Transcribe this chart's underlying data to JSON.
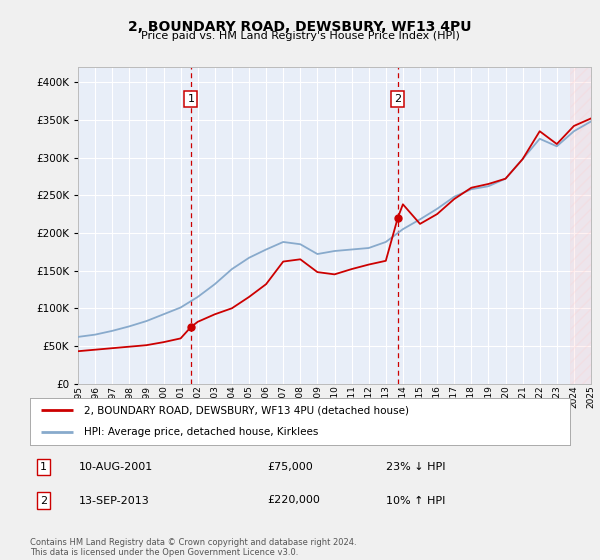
{
  "title": "2, BOUNDARY ROAD, DEWSBURY, WF13 4PU",
  "subtitle": "Price paid vs. HM Land Registry's House Price Index (HPI)",
  "bg_color": "#f0f0f0",
  "plot_bg": "#e8eef8",
  "red_color": "#cc0000",
  "blue_color": "#88aacc",
  "marker1_year": 2001.6,
  "marker2_year": 2013.7,
  "marker1_price": 75000,
  "marker2_price": 220000,
  "legend_entry1": "2, BOUNDARY ROAD, DEWSBURY, WF13 4PU (detached house)",
  "legend_entry2": "HPI: Average price, detached house, Kirklees",
  "sale1_text": "10-AUG-2001",
  "sale1_price_text": "£75,000",
  "sale1_hpi": "23% ↓ HPI",
  "sale2_text": "13-SEP-2013",
  "sale2_price_text": "£220,000",
  "sale2_hpi": "10% ↑ HPI",
  "footer": "Contains HM Land Registry data © Crown copyright and database right 2024.\nThis data is licensed under the Open Government Licence v3.0.",
  "ylim": [
    0,
    420000
  ],
  "yticks": [
    0,
    50000,
    100000,
    150000,
    200000,
    250000,
    300000,
    350000,
    400000
  ],
  "year_start": 1995,
  "year_end": 2025,
  "hpi_years": [
    1995,
    1996,
    1997,
    1998,
    1999,
    2000,
    2001,
    2002,
    2003,
    2004,
    2005,
    2006,
    2007,
    2008,
    2009,
    2010,
    2011,
    2012,
    2013,
    2014,
    2015,
    2016,
    2017,
    2018,
    2019,
    2020,
    2021,
    2022,
    2023,
    2024,
    2025
  ],
  "hpi_values": [
    62000,
    65000,
    70000,
    76000,
    83000,
    92000,
    101000,
    115000,
    132000,
    152000,
    167000,
    178000,
    188000,
    185000,
    172000,
    176000,
    178000,
    180000,
    188000,
    205000,
    218000,
    232000,
    248000,
    258000,
    262000,
    272000,
    298000,
    325000,
    315000,
    335000,
    348000
  ],
  "red_years": [
    1995,
    1996,
    1997,
    1998,
    1999,
    2000,
    2001,
    2001.6,
    2002,
    2003,
    2004,
    2005,
    2006,
    2007,
    2008,
    2009,
    2010,
    2011,
    2012,
    2013,
    2013.7,
    2014,
    2015,
    2016,
    2017,
    2018,
    2019,
    2020,
    2021,
    2022,
    2023,
    2024,
    2025
  ],
  "red_values": [
    43000,
    45000,
    47000,
    49000,
    51000,
    55000,
    60000,
    75000,
    82000,
    92000,
    100000,
    115000,
    132000,
    162000,
    165000,
    148000,
    145000,
    152000,
    158000,
    163000,
    220000,
    238000,
    212000,
    225000,
    245000,
    260000,
    265000,
    272000,
    298000,
    335000,
    318000,
    342000,
    352000
  ]
}
